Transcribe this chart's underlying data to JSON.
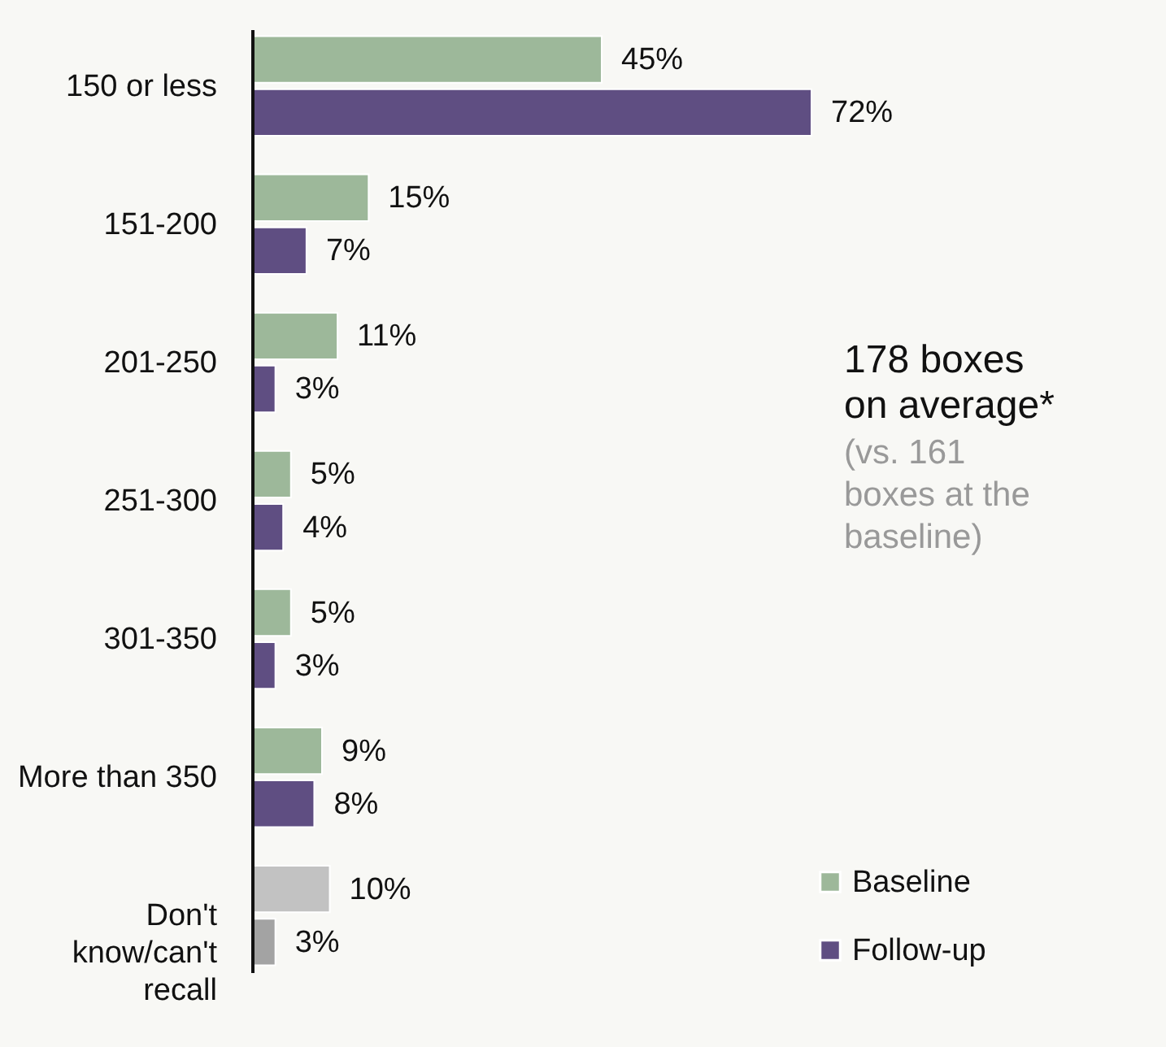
{
  "chart_data": {
    "type": "bar",
    "orientation": "horizontal",
    "categories": [
      "150 or less",
      "151-200",
      "201-250",
      "251-300",
      "301-350",
      "More than 350",
      "Don't know/can't recall"
    ],
    "series": [
      {
        "name": "Baseline",
        "color": "#9db89a",
        "colors": [
          "#9db89a",
          "#9db89a",
          "#9db89a",
          "#9db89a",
          "#9db89a",
          "#9db89a",
          "#c2c2c2"
        ],
        "values": [
          45,
          15,
          11,
          5,
          5,
          9,
          10
        ],
        "value_labels": [
          "45%",
          "15%",
          "11%",
          "5%",
          "5%",
          "9%",
          "10%"
        ]
      },
      {
        "name": "Follow-up",
        "color": "#5f4e82",
        "colors": [
          "#5f4e82",
          "#5f4e82",
          "#5f4e82",
          "#5f4e82",
          "#5f4e82",
          "#5f4e82",
          "#a3a3a3"
        ],
        "values": [
          72,
          7,
          3,
          4,
          3,
          8,
          3
        ],
        "value_labels": [
          "72%",
          "7%",
          "3%",
          "4%",
          "3%",
          "8%",
          "3%"
        ]
      }
    ],
    "tick_labels": "y",
    "grid": false,
    "legend": "bottom right",
    "annotations": [
      "178 boxes on average*",
      "(vs. 161 boxes at the baseline)"
    ]
  }
}
